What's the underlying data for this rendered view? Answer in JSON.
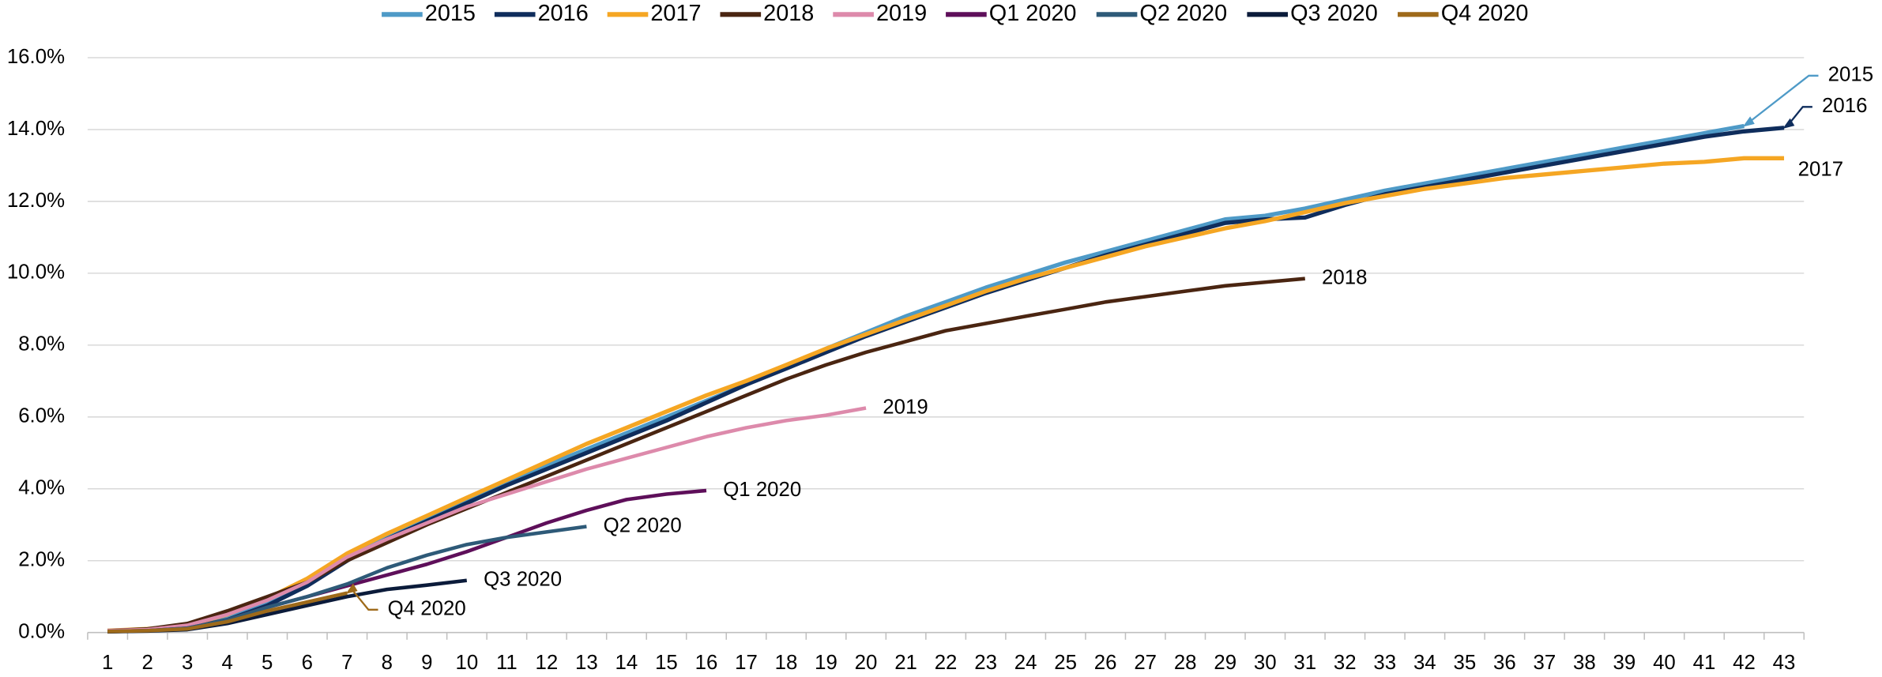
{
  "chart_data": {
    "type": "line",
    "x": [
      1,
      2,
      3,
      4,
      5,
      6,
      7,
      8,
      9,
      10,
      11,
      12,
      13,
      14,
      15,
      16,
      17,
      18,
      19,
      20,
      21,
      22,
      23,
      24,
      25,
      26,
      27,
      28,
      29,
      30,
      31,
      32,
      33,
      34,
      35,
      36,
      37,
      38,
      39,
      40,
      41,
      42,
      43
    ],
    "xlim": [
      0.5,
      43.5
    ],
    "ylim": [
      0,
      16
    ],
    "yticks": [
      {
        "value": 0,
        "label": "0.0%"
      },
      {
        "value": 2,
        "label": "2.0%"
      },
      {
        "value": 4,
        "label": "4.0%"
      },
      {
        "value": 6,
        "label": "6.0%"
      },
      {
        "value": 8,
        "label": "8.0%"
      },
      {
        "value": 10,
        "label": "10.0%"
      },
      {
        "value": 12,
        "label": "12.0%"
      },
      {
        "value": 14,
        "label": "14.0%"
      },
      {
        "value": 16,
        "label": "16.0%"
      }
    ],
    "grid": true,
    "legend": "top",
    "series": [
      {
        "name": "2015",
        "color": "#4e9ac7",
        "values": [
          0.05,
          0.08,
          0.15,
          0.4,
          0.8,
          1.4,
          2.1,
          2.65,
          3.15,
          3.65,
          4.15,
          4.65,
          5.1,
          5.55,
          6.0,
          6.45,
          6.9,
          7.4,
          7.9,
          8.35,
          8.8,
          9.2,
          9.6,
          9.95,
          10.3,
          10.6,
          10.9,
          11.2,
          11.5,
          11.6,
          11.8,
          12.05,
          12.3,
          12.5,
          12.7,
          12.9,
          13.1,
          13.3,
          13.5,
          13.7,
          13.9,
          14.1,
          null
        ]
      },
      {
        "name": "2016",
        "color": "#0f2d5c",
        "values": [
          0.03,
          0.06,
          0.12,
          0.35,
          0.75,
          1.3,
          2.0,
          2.6,
          3.1,
          3.6,
          4.1,
          4.55,
          5.0,
          5.45,
          5.9,
          6.4,
          6.9,
          7.35,
          7.8,
          8.25,
          8.65,
          9.05,
          9.45,
          9.8,
          10.15,
          10.5,
          10.8,
          11.1,
          11.4,
          11.5,
          11.55,
          11.9,
          12.2,
          12.4,
          12.6,
          12.8,
          13.0,
          13.2,
          13.4,
          13.6,
          13.8,
          13.95,
          14.05
        ]
      },
      {
        "name": "2017",
        "color": "#f5a623",
        "values": [
          0.05,
          0.1,
          0.2,
          0.5,
          0.95,
          1.5,
          2.2,
          2.75,
          3.25,
          3.75,
          4.25,
          4.75,
          5.25,
          5.7,
          6.15,
          6.6,
          7.0,
          7.45,
          7.9,
          8.3,
          8.7,
          9.1,
          9.5,
          9.85,
          10.15,
          10.45,
          10.75,
          11.0,
          11.25,
          11.45,
          11.7,
          11.95,
          12.15,
          12.35,
          12.5,
          12.65,
          12.75,
          12.85,
          12.95,
          13.05,
          13.1,
          13.2,
          13.2
        ]
      },
      {
        "name": "2018",
        "color": "#4a2511",
        "values": [
          0.05,
          0.1,
          0.25,
          0.6,
          1.0,
          1.4,
          2.0,
          2.5,
          3.0,
          3.45,
          3.9,
          4.35,
          4.8,
          5.25,
          5.7,
          6.15,
          6.6,
          7.05,
          7.45,
          7.8,
          8.1,
          8.4,
          8.6,
          8.8,
          9.0,
          9.2,
          9.35,
          9.5,
          9.65,
          9.75,
          9.85,
          null,
          null,
          null,
          null,
          null,
          null,
          null,
          null,
          null,
          null,
          null,
          null
        ]
      },
      {
        "name": "2019",
        "color": "#dd8aab",
        "values": [
          0.05,
          0.08,
          0.2,
          0.5,
          0.9,
          1.4,
          2.1,
          2.6,
          3.05,
          3.5,
          3.85,
          4.2,
          4.55,
          4.85,
          5.15,
          5.45,
          5.7,
          5.9,
          6.05,
          6.25,
          null,
          null,
          null,
          null,
          null,
          null,
          null,
          null,
          null,
          null,
          null,
          null,
          null,
          null,
          null,
          null,
          null,
          null,
          null,
          null,
          null,
          null,
          null
        ]
      },
      {
        "name": "Q1 2020",
        "color": "#5e0f5a",
        "values": [
          0.03,
          0.05,
          0.12,
          0.35,
          0.7,
          1.0,
          1.3,
          1.6,
          1.9,
          2.25,
          2.65,
          3.05,
          3.4,
          3.7,
          3.85,
          3.95,
          null,
          null,
          null,
          null,
          null,
          null,
          null,
          null,
          null,
          null,
          null,
          null,
          null,
          null,
          null,
          null,
          null,
          null,
          null,
          null,
          null,
          null,
          null,
          null,
          null,
          null,
          null
        ]
      },
      {
        "name": "Q2 2020",
        "color": "#2e5a78",
        "values": [
          0.03,
          0.05,
          0.12,
          0.35,
          0.7,
          1.0,
          1.35,
          1.8,
          2.15,
          2.45,
          2.65,
          2.8,
          2.95,
          null,
          null,
          null,
          null,
          null,
          null,
          null,
          null,
          null,
          null,
          null,
          null,
          null,
          null,
          null,
          null,
          null,
          null,
          null,
          null,
          null,
          null,
          null,
          null,
          null,
          null,
          null,
          null,
          null,
          null
        ]
      },
      {
        "name": "Q3 2020",
        "color": "#0b1b3a",
        "values": [
          0.02,
          0.04,
          0.08,
          0.25,
          0.5,
          0.75,
          1.0,
          1.2,
          1.32,
          1.45,
          null,
          null,
          null,
          null,
          null,
          null,
          null,
          null,
          null,
          null,
          null,
          null,
          null,
          null,
          null,
          null,
          null,
          null,
          null,
          null,
          null,
          null,
          null,
          null,
          null,
          null,
          null,
          null,
          null,
          null,
          null,
          null,
          null
        ]
      },
      {
        "name": "Q4 2020",
        "color": "#9e6a1a",
        "values": [
          0.03,
          0.05,
          0.1,
          0.3,
          0.6,
          0.85,
          1.1,
          null,
          null,
          null,
          null,
          null,
          null,
          null,
          null,
          null,
          null,
          null,
          null,
          null,
          null,
          null,
          null,
          null,
          null,
          null,
          null,
          null,
          null,
          null,
          null,
          null,
          null,
          null,
          null,
          null,
          null,
          null,
          null,
          null,
          null,
          null,
          null
        ]
      }
    ]
  }
}
